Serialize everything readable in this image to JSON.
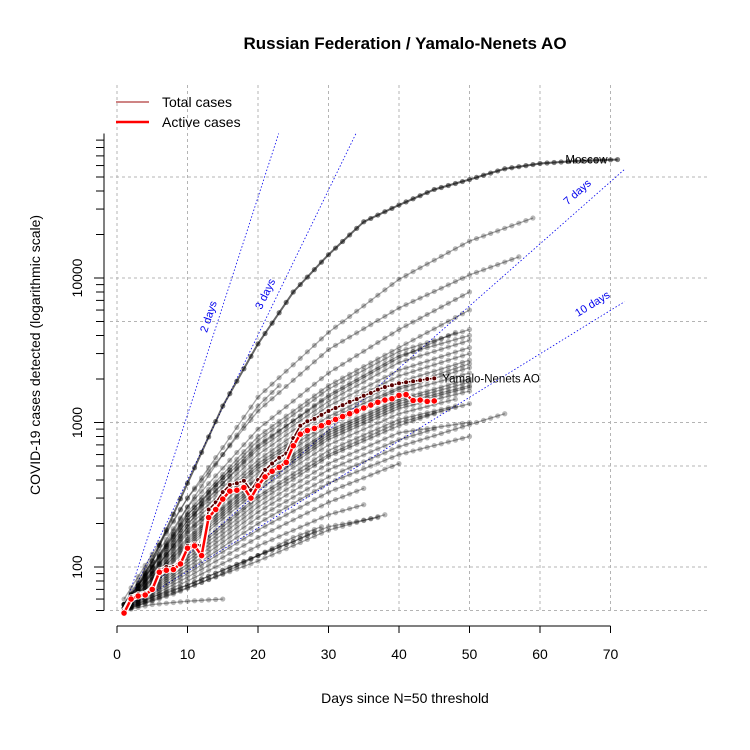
{
  "chart_data": {
    "type": "line",
    "title": "Russian Federation / Yamalo-Nenets AO",
    "xlabel": "Days since N=50 threshold",
    "ylabel": "COVID-19 cases detected (logarithmic scale)",
    "y_scale": "log",
    "xlim": [
      0,
      72
    ],
    "ylim": [
      45,
      100000
    ],
    "x_ticks": [
      0,
      10,
      20,
      30,
      40,
      50,
      60,
      70
    ],
    "y_tick_labels": [
      {
        "value": 100,
        "label": "100"
      },
      {
        "value": 1000,
        "label": "1000"
      },
      {
        "value": 10000,
        "label": "10000"
      }
    ],
    "grid": true,
    "legend_position": "top-left",
    "legend": [
      {
        "label": "Total cases",
        "color": "#b03a3a"
      },
      {
        "label": "Active cases",
        "color": "#ff0000"
      }
    ],
    "colors": {
      "background_series": "#000000",
      "reference_lines": "#0000ee",
      "total_cases": "#5a0000",
      "active_cases": "#ff0000"
    },
    "reference_lines": [
      {
        "label": "2 days",
        "doubling_days": 2
      },
      {
        "label": "3 days",
        "doubling_days": 3
      },
      {
        "label": "7 days",
        "doubling_days": 7
      },
      {
        "label": "10 days",
        "doubling_days": 10
      }
    ],
    "annotations": [
      {
        "label": "Moscow",
        "x": 71,
        "y": 66000
      },
      {
        "label": "Yamalo-Nenets AO",
        "x": 45,
        "y": 2020
      }
    ],
    "series": [
      {
        "name": "Moscow",
        "x": [
          1,
          5,
          10,
          15,
          20,
          25,
          30,
          35,
          40,
          45,
          50,
          55,
          60,
          65,
          71
        ],
        "y": [
          50,
          110,
          380,
          1300,
          3500,
          8000,
          14500,
          24500,
          32000,
          41000,
          48000,
          57000,
          62000,
          64500,
          66000
        ]
      },
      {
        "name": "",
        "x": [
          1,
          10,
          20,
          30,
          40,
          50,
          59
        ],
        "y": [
          55,
          300,
          1500,
          4200,
          9800,
          18000,
          26000
        ]
      },
      {
        "name": "",
        "x": [
          1,
          10,
          20,
          30,
          40,
          50,
          57
        ],
        "y": [
          60,
          300,
          1200,
          3200,
          6200,
          10500,
          14000
        ]
      },
      {
        "name": "",
        "x": [
          1,
          10,
          20,
          30,
          40,
          50
        ],
        "y": [
          55,
          260,
          900,
          2200,
          4400,
          8000
        ]
      },
      {
        "name": "",
        "x": [
          1,
          10,
          20,
          30,
          40,
          50
        ],
        "y": [
          50,
          240,
          800,
          1800,
          3300,
          6000
        ]
      },
      {
        "name": "",
        "x": [
          1,
          10,
          20,
          30,
          40,
          48
        ],
        "y": [
          50,
          230,
          700,
          1500,
          2800,
          4200
        ]
      },
      {
        "name": "",
        "x": [
          1,
          10,
          20,
          30,
          40,
          50
        ],
        "y": [
          55,
          220,
          650,
          1400,
          2600,
          3700
        ]
      },
      {
        "name": "",
        "x": [
          1,
          10,
          20,
          30,
          40,
          50
        ],
        "y": [
          50,
          210,
          600,
          1300,
          2300,
          3300
        ]
      },
      {
        "name": "",
        "x": [
          1,
          10,
          20,
          30,
          40,
          50
        ],
        "y": [
          50,
          200,
          550,
          1200,
          2100,
          3000
        ]
      },
      {
        "name": "",
        "x": [
          1,
          10,
          20,
          30,
          40,
          50
        ],
        "y": [
          50,
          190,
          520,
          1100,
          1900,
          2700
        ]
      },
      {
        "name": "",
        "x": [
          1,
          10,
          20,
          30,
          40,
          50
        ],
        "y": [
          55,
          180,
          480,
          1000,
          1700,
          2400
        ]
      },
      {
        "name": "",
        "x": [
          1,
          10,
          20,
          30,
          40,
          50
        ],
        "y": [
          50,
          170,
          450,
          950,
          1600,
          2200
        ]
      },
      {
        "name": "",
        "x": [
          1,
          10,
          20,
          30,
          40,
          50
        ],
        "y": [
          50,
          160,
          420,
          880,
          1450,
          2000
        ]
      },
      {
        "name": "",
        "x": [
          1,
          10,
          20,
          30,
          40,
          50
        ],
        "y": [
          50,
          150,
          390,
          820,
          1350,
          1800
        ]
      },
      {
        "name": "",
        "x": [
          1,
          10,
          20,
          30,
          40,
          50
        ],
        "y": [
          50,
          140,
          360,
          760,
          1250,
          1650
        ]
      },
      {
        "name": "",
        "x": [
          1,
          10,
          20,
          30,
          40,
          48
        ],
        "y": [
          50,
          135,
          340,
          700,
          1150,
          1450
        ]
      },
      {
        "name": "",
        "x": [
          1,
          10,
          20,
          30,
          40,
          48
        ],
        "y": [
          50,
          125,
          310,
          640,
          1050,
          1300
        ]
      },
      {
        "name": "",
        "x": [
          1,
          10,
          20,
          30,
          40,
          45
        ],
        "y": [
          50,
          115,
          280,
          580,
          950,
          1150
        ]
      },
      {
        "name": "",
        "x": [
          1,
          10,
          20,
          30,
          40,
          50
        ],
        "y": [
          50,
          110,
          260,
          520,
          850,
          1000
        ]
      },
      {
        "name": "",
        "x": [
          1,
          10,
          20,
          30,
          40,
          45
        ],
        "y": [
          50,
          105,
          240,
          470,
          760,
          900
        ]
      },
      {
        "name": "",
        "x": [
          1,
          10,
          20,
          30,
          40,
          55
        ],
        "y": [
          50,
          100,
          220,
          420,
          680,
          1150
        ]
      },
      {
        "name": "",
        "x": [
          1,
          10,
          20,
          30,
          40,
          50
        ],
        "y": [
          50,
          95,
          200,
          380,
          600,
          800
        ]
      },
      {
        "name": "",
        "x": [
          1,
          10,
          20,
          30,
          40
        ],
        "y": [
          50,
          90,
          180,
          330,
          520
        ]
      },
      {
        "name": "",
        "x": [
          1,
          10,
          20,
          30,
          35
        ],
        "y": [
          50,
          85,
          160,
          280,
          350
        ]
      },
      {
        "name": "",
        "x": [
          1,
          10,
          20,
          30,
          35
        ],
        "y": [
          50,
          80,
          140,
          230,
          270
        ]
      },
      {
        "name": "",
        "x": [
          1,
          10,
          20,
          25,
          29
        ],
        "y": [
          50,
          75,
          120,
          160,
          190
        ]
      },
      {
        "name": "",
        "x": [
          1,
          10,
          20,
          30,
          38
        ],
        "y": [
          50,
          72,
          110,
          180,
          230
        ]
      },
      {
        "name": "",
        "x": [
          1,
          8,
          15,
          20,
          25,
          30,
          37
        ],
        "y": [
          50,
          65,
          90,
          120,
          150,
          190,
          220
        ]
      },
      {
        "name": "",
        "x": [
          1,
          5,
          10,
          15
        ],
        "y": [
          50,
          55,
          58,
          60
        ]
      },
      {
        "name": "",
        "x": [
          1,
          5,
          10,
          15,
          20,
          25,
          28
        ],
        "y": [
          50,
          62,
          75,
          95,
          120,
          150,
          175
        ]
      },
      {
        "name": "",
        "x": [
          1,
          5,
          10,
          13,
          16
        ],
        "y": [
          55,
          90,
          190,
          330,
          470
        ]
      },
      {
        "name": "",
        "x": [
          1,
          5,
          10,
          15,
          20,
          23
        ],
        "y": [
          55,
          100,
          260,
          600,
          1300,
          1800
        ]
      },
      {
        "name": "",
        "x": [
          1,
          10,
          20,
          30,
          40,
          50
        ],
        "y": [
          52,
          175,
          500,
          1050,
          1750,
          2550
        ]
      },
      {
        "name": "",
        "x": [
          1,
          10,
          20,
          30,
          40,
          50
        ],
        "y": [
          52,
          155,
          410,
          850,
          1400,
          1900
        ]
      },
      {
        "name": "",
        "x": [
          1,
          10,
          20,
          30,
          40,
          50
        ],
        "y": [
          52,
          145,
          375,
          790,
          1300,
          1750
        ]
      },
      {
        "name": "",
        "x": [
          1,
          10,
          20,
          30,
          40,
          50
        ],
        "y": [
          52,
          120,
          300,
          600,
          1000,
          1350
        ]
      },
      {
        "name": "",
        "x": [
          1,
          10,
          20,
          30,
          40,
          50
        ],
        "y": [
          55,
          230,
          750,
          1700,
          3100,
          4400
        ]
      },
      {
        "name": "",
        "x": [
          1,
          10,
          20,
          30,
          40,
          50
        ],
        "y": [
          55,
          210,
          680,
          1550,
          2900,
          4000
        ]
      },
      {
        "name": "Total cases (Yamalo-Nenets AO)",
        "x": [
          1,
          2,
          3,
          4,
          5,
          6,
          7,
          8,
          9,
          10,
          11,
          12,
          13,
          14,
          15,
          16,
          17,
          18,
          19,
          20,
          21,
          22,
          23,
          24,
          25,
          26,
          27,
          28,
          29,
          30,
          31,
          32,
          33,
          34,
          35,
          36,
          37,
          38,
          39,
          40,
          41,
          42,
          43,
          44,
          45
        ],
        "y": [
          50,
          62,
          65,
          66,
          72,
          95,
          100,
          100,
          110,
          140,
          145,
          140,
          250,
          280,
          330,
          370,
          380,
          395,
          340,
          400,
          470,
          520,
          570,
          610,
          780,
          950,
          1020,
          1060,
          1130,
          1200,
          1260,
          1320,
          1390,
          1450,
          1530,
          1600,
          1690,
          1760,
          1810,
          1870,
          1900,
          1930,
          1960,
          2000,
          2020
        ]
      },
      {
        "name": "Active cases (Yamalo-Nenets AO)",
        "x": [
          1,
          2,
          3,
          4,
          5,
          6,
          7,
          8,
          9,
          10,
          11,
          12,
          13,
          14,
          15,
          16,
          17,
          18,
          19,
          20,
          21,
          22,
          23,
          24,
          25,
          26,
          27,
          28,
          29,
          30,
          31,
          32,
          33,
          34,
          35,
          36,
          37,
          38,
          39,
          40,
          41,
          42,
          43,
          44,
          45
        ],
        "y": [
          48,
          60,
          63,
          64,
          70,
          92,
          95,
          96,
          105,
          135,
          140,
          120,
          220,
          250,
          295,
          335,
          340,
          355,
          300,
          365,
          420,
          460,
          490,
          530,
          690,
          830,
          880,
          910,
          950,
          1000,
          1050,
          1100,
          1150,
          1200,
          1260,
          1320,
          1380,
          1430,
          1460,
          1540,
          1560,
          1420,
          1430,
          1400,
          1410
        ]
      }
    ]
  }
}
